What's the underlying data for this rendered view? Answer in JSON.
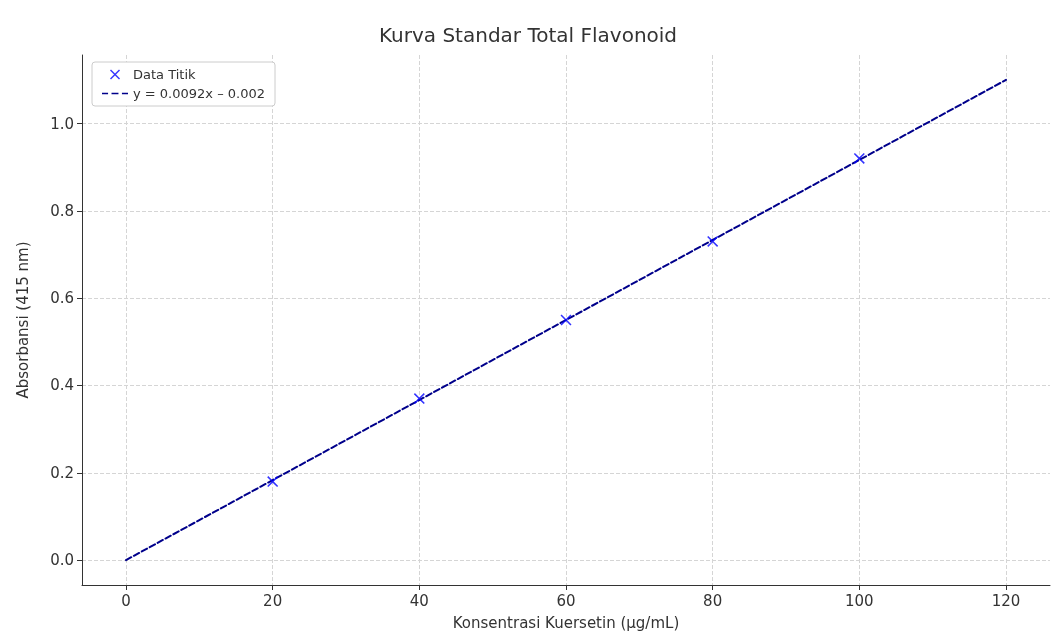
{
  "chart_data": {
    "type": "scatter",
    "title": "Kurva Standar Total Flavonoid",
    "xlabel": "Konsentrasi Kuersetin (µg/mL)",
    "ylabel": "Absorbansi (415 nm)",
    "x": [
      20,
      40,
      60,
      80,
      100
    ],
    "series": [
      {
        "name": "Data Titik",
        "color": "#0000ff",
        "values": [
          0.18,
          0.37,
          0.55,
          0.73,
          0.92
        ],
        "marker": "cross"
      },
      {
        "name": "y = 0.0092x – 0.002",
        "type": "line",
        "color": "#00008b",
        "x": [
          0,
          120
        ],
        "values": [
          0,
          1.1
        ],
        "line_style": "dashed",
        "marker": "none"
      }
    ],
    "xlim": [
      -6,
      126
    ],
    "xticks": [
      0,
      20,
      40,
      60,
      80,
      100,
      120
    ],
    "ylim": [
      -0.057,
      1.157
    ],
    "yticks": [
      {
        "value": 0,
        "label": "0.0"
      },
      0.2,
      0.4,
      0.6,
      0.8,
      {
        "value": 1,
        "label": "1.0"
      }
    ],
    "grid": true,
    "legend": "top left"
  }
}
